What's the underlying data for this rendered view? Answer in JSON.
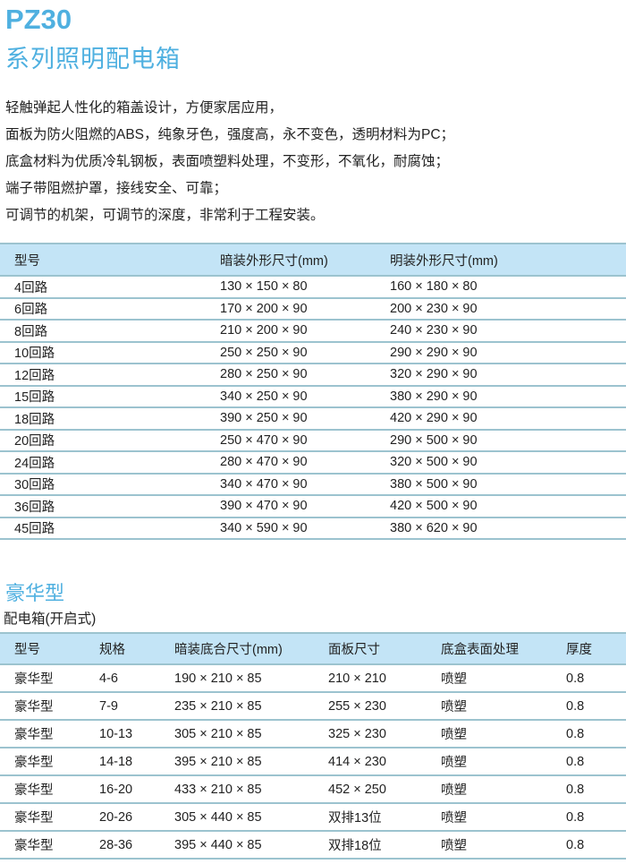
{
  "title": "PZ30",
  "subtitle": "系列照明配电箱",
  "features": [
    "轻触弹起人性化的箱盖设计，方便家居应用，",
    "面板为防火阻燃的ABS，纯象牙色，强度高，永不变色，透明材料为PC；",
    "底盒材料为优质冷轧钢板，表面喷塑料处理，不变形，不氧化，耐腐蚀；",
    "端子带阻燃护罩，接线安全、可靠；",
    "可调节的机架，可调节的深度，非常利于工程安装。"
  ],
  "table1": {
    "headers": [
      "型号",
      "暗装外形尺寸(mm)",
      "明装外形尺寸(mm)"
    ],
    "rows": [
      [
        "4回路",
        "130 × 150 × 80",
        "160 × 180 × 80"
      ],
      [
        "6回路",
        "170 × 200 × 90",
        "200 × 230 × 90"
      ],
      [
        "8回路",
        "210 × 200 × 90",
        "240 × 230 × 90"
      ],
      [
        "10回路",
        "250 × 250 × 90",
        "290 × 290 × 90"
      ],
      [
        "12回路",
        "280 × 250 × 90",
        "320 × 290 × 90"
      ],
      [
        "15回路",
        "340 × 250 × 90",
        "380 × 290 × 90"
      ],
      [
        "18回路",
        "390 × 250 × 90",
        "420 × 290 × 90"
      ],
      [
        "20回路",
        "250 × 470 × 90",
        "290 × 500 × 90"
      ],
      [
        "24回路",
        "280 × 470 × 90",
        "320 × 500 × 90"
      ],
      [
        "30回路",
        "340 × 470 × 90",
        "380 × 500 × 90"
      ],
      [
        "36回路",
        "390 × 470 × 90",
        "420 × 500 × 90"
      ],
      [
        "45回路",
        "340 × 590 × 90",
        "380 × 620 × 90"
      ]
    ]
  },
  "section2": {
    "title": "豪华型",
    "subtitle": "配电箱(开启式)"
  },
  "table2": {
    "headers": [
      "型号",
      "规格",
      "暗装底合尺寸(mm)",
      "面板尺寸",
      "底盒表面处理",
      "厚度"
    ],
    "rows": [
      [
        "豪华型",
        "4-6",
        "190 × 210 × 85",
        "210 × 210",
        "喷塑",
        "0.8"
      ],
      [
        "豪华型",
        "7-9",
        "235 × 210 × 85",
        "255 × 230",
        "喷塑",
        "0.8"
      ],
      [
        "豪华型",
        "10-13",
        "305 × 210 × 85",
        "325 × 230",
        "喷塑",
        "0.8"
      ],
      [
        "豪华型",
        "14-18",
        "395 × 210 × 85",
        "414 × 230",
        "喷塑",
        "0.8"
      ],
      [
        "豪华型",
        "16-20",
        "433 × 210 × 85",
        "452 × 250",
        "喷塑",
        "0.8"
      ],
      [
        "豪华型",
        "20-26",
        "305 × 440 × 85",
        "双排13位",
        "喷塑",
        "0.8"
      ],
      [
        "豪华型",
        "28-36",
        "395 × 440 × 85",
        "双排18位",
        "喷塑",
        "0.8"
      ]
    ]
  },
  "colors": {
    "accent": "#4fb0e0",
    "header_bg": "#c3e4f6",
    "rule": "#9cc3cf"
  }
}
